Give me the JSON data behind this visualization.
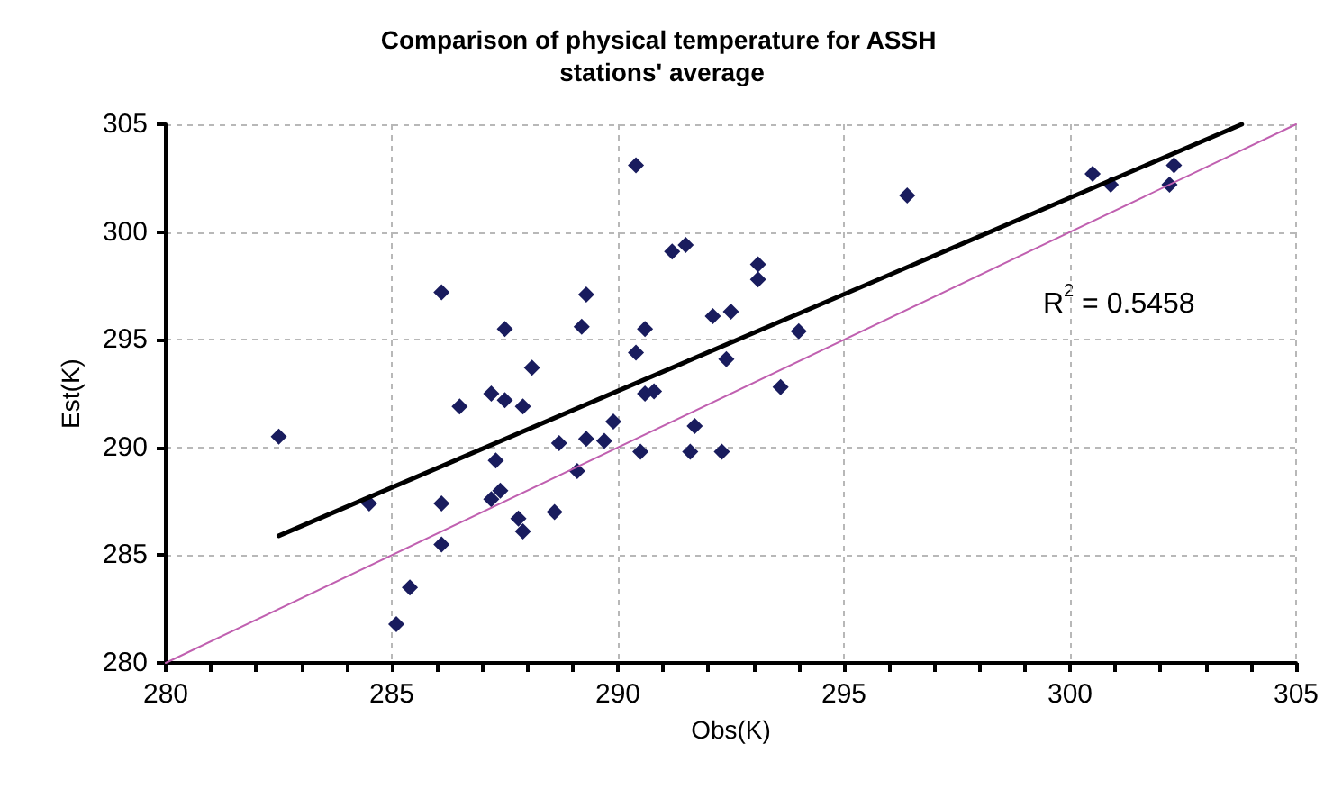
{
  "chart_data": {
    "type": "scatter",
    "title": "Comparison of physical temperature for ASSH stations' average",
    "xlabel": "Obs(K)",
    "ylabel": "Est(K)",
    "xlim": [
      280,
      305
    ],
    "xticks": [
      280,
      285,
      290,
      295,
      300,
      305
    ],
    "ylim": [
      280,
      305
    ],
    "yticks": [
      280,
      285,
      290,
      295,
      300,
      305
    ],
    "grid": true,
    "marker": "diamond",
    "annotations": [
      "R$^{2}$ = 0.5458"
    ],
    "series": [
      {
        "color": "#191c5e",
        "x": [
          282.5,
          284.5,
          285.1,
          285.4,
          286.1,
          286.1,
          286.1,
          286.5,
          287.2,
          287.5,
          287.5,
          287.9,
          288.1,
          287.3,
          287.2,
          287.4,
          287.8,
          287.9,
          288.6,
          288.7,
          289.1,
          289.3,
          289.2,
          289.3,
          289.7,
          289.9,
          290.4,
          290.4,
          290.6,
          290.5,
          290.6,
          290.8,
          291.2,
          291.5,
          291.7,
          291.6,
          292.1,
          292.5,
          292.4,
          292.3,
          293.1,
          293.1,
          294.0,
          293.6,
          296.4,
          300.5,
          300.9,
          302.2,
          302.3
        ],
        "values": [
          290.5,
          287.4,
          281.8,
          283.5,
          285.5,
          287.4,
          297.2,
          291.9,
          292.5,
          295.5,
          292.2,
          291.9,
          293.7,
          289.4,
          287.6,
          288.0,
          286.7,
          286.1,
          287.0,
          290.2,
          288.9,
          297.1,
          295.6,
          290.4,
          290.3,
          291.2,
          303.1,
          294.4,
          295.5,
          289.8,
          292.5,
          292.6,
          299.1,
          299.4,
          291.0,
          289.8,
          296.1,
          296.3,
          294.1,
          289.8,
          298.5,
          297.8,
          295.4,
          292.8,
          301.7,
          302.7,
          302.2,
          302.2,
          303.1
        ]
      },
      {
        "type": "line",
        "color": "#000000",
        "marker": "none",
        "x": [
          282.5,
          303.8
        ],
        "values": [
          285.9,
          305
        ]
      },
      {
        "type": "line",
        "color": "#c060b0",
        "marker": "none",
        "x": [
          280,
          305
        ],
        "values": [
          280,
          305
        ]
      }
    ]
  }
}
